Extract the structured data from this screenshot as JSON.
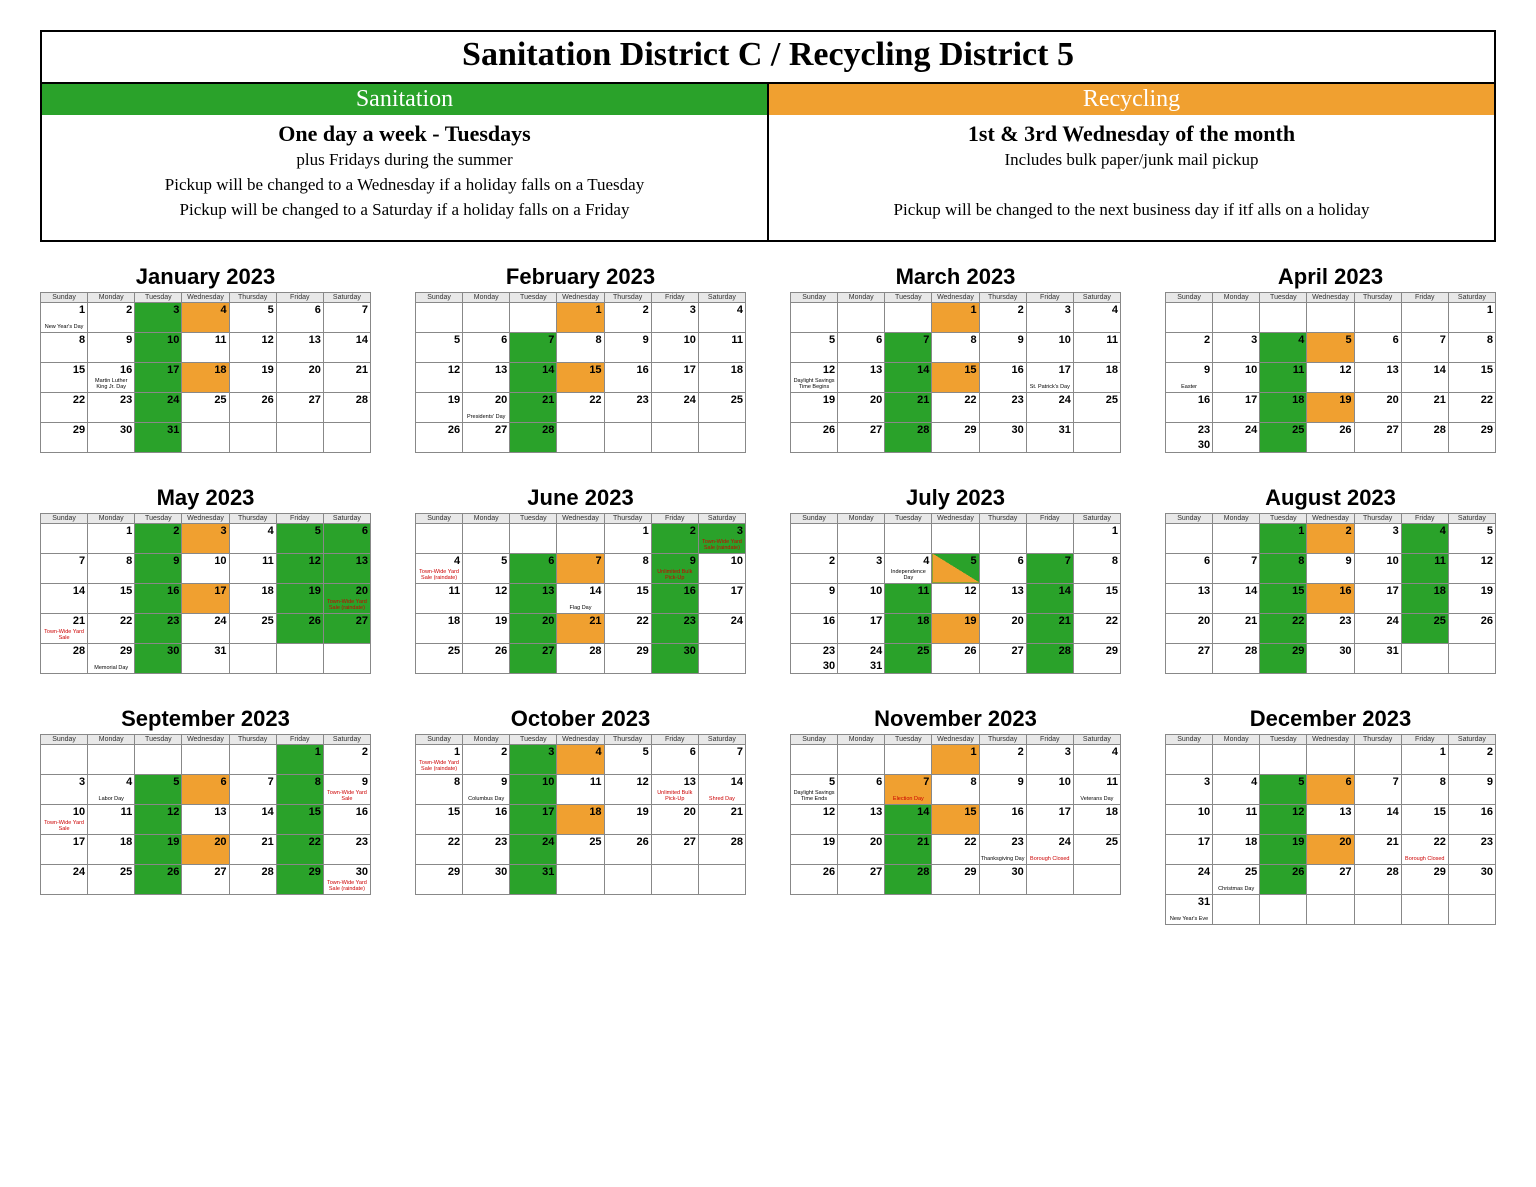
{
  "colors": {
    "sanitation": "#2aa22a",
    "recycling": "#f0a030",
    "border": "#000000",
    "header_bg": "#e8e8e8",
    "note_red": "#cc0000"
  },
  "header": {
    "main_title": "Sanitation District C / Recycling District 5",
    "sanitation": {
      "band": "Sanitation",
      "schedule": "One day a week - Tuesdays",
      "lines": [
        "plus Fridays during the summer",
        "Pickup will be changed to a Wednesday if a holiday falls on a Tuesday",
        "Pickup will be changed to a Saturday if a holiday falls on a Friday"
      ]
    },
    "recycling": {
      "band": "Recycling",
      "schedule": "1st & 3rd Wednesday of the month",
      "lines": [
        "Includes bulk paper/junk mail pickup",
        "",
        "Pickup will be changed to the next business day if itf alls on a holiday"
      ]
    }
  },
  "weekdays": [
    "Sunday",
    "Monday",
    "Tuesday",
    "Wednesday",
    "Thursday",
    "Friday",
    "Saturday"
  ],
  "months": [
    {
      "title": "January 2023",
      "start": 0,
      "days": 31,
      "colors": {
        "3": "g",
        "4": "o",
        "10": "g",
        "17": "g",
        "18": "o",
        "24": "g",
        "31": "g"
      },
      "notes": {
        "1": {
          "t": "New Year's Day"
        },
        "16": {
          "t": "Martin Luther King Jr. Day"
        }
      }
    },
    {
      "title": "February 2023",
      "start": 3,
      "days": 28,
      "colors": {
        "1": "o",
        "7": "g",
        "14": "g",
        "15": "o",
        "21": "g",
        "28": "g"
      },
      "notes": {
        "20": {
          "t": "Presidents' Day"
        }
      }
    },
    {
      "title": "March 2023",
      "start": 3,
      "days": 31,
      "colors": {
        "1": "o",
        "7": "g",
        "14": "g",
        "15": "o",
        "21": "g",
        "28": "g"
      },
      "notes": {
        "12": {
          "t": "Daylight Savings Time Begins"
        },
        "17": {
          "t": "St. Patrick's Day"
        }
      }
    },
    {
      "title": "April 2023",
      "start": 6,
      "days": 30,
      "double": {
        "23": "30"
      },
      "colors": {
        "4": "g",
        "5": "o",
        "11": "g",
        "18": "g",
        "19": "o",
        "25": "g"
      },
      "notes": {
        "9": {
          "t": "Easter"
        }
      }
    },
    {
      "title": "May 2023",
      "start": 1,
      "days": 31,
      "colors": {
        "2": "g",
        "3": "o",
        "5": "g",
        "6": "g",
        "9": "g",
        "12": "g",
        "13": "g",
        "16": "g",
        "17": "o",
        "19": "g",
        "20": "g",
        "23": "g",
        "26": "g",
        "27": "g",
        "30": "g"
      },
      "notes": {
        "20": {
          "t": "Town-Wide Yard Sale (raindate)",
          "red": true
        },
        "21": {
          "t": "Town-Wide Yard Sale",
          "red": true
        },
        "29": {
          "t": "Memorial Day"
        }
      }
    },
    {
      "title": "June 2023",
      "start": 4,
      "days": 30,
      "colors": {
        "2": "g",
        "3": "g",
        "6": "g",
        "7": "o",
        "9": "g",
        "13": "g",
        "16": "g",
        "20": "g",
        "21": "o",
        "23": "g",
        "27": "g",
        "30": "g"
      },
      "notes": {
        "3": {
          "t": "Town-Wide Yard Sale (raindate)",
          "red": true
        },
        "4": {
          "t": "Town-Wide Yard Sale (raindate)",
          "red": true
        },
        "9": {
          "t": "Unlimited Bulk Pick-Up",
          "red": true
        },
        "14": {
          "t": "Flag Day"
        }
      }
    },
    {
      "title": "July 2023",
      "start": 6,
      "days": 31,
      "double": {
        "23": "30",
        "24": "31"
      },
      "colors": {
        "5": "split",
        "7": "g",
        "11": "g",
        "14": "g",
        "18": "g",
        "19": "o",
        "21": "g",
        "25": "g",
        "28": "g"
      },
      "notes": {
        "4": {
          "t": "Independence Day"
        }
      }
    },
    {
      "title": "August 2023",
      "start": 2,
      "days": 31,
      "colors": {
        "1": "g",
        "2": "o",
        "4": "g",
        "8": "g",
        "11": "g",
        "15": "g",
        "16": "o",
        "18": "g",
        "22": "g",
        "25": "g",
        "29": "g"
      },
      "notes": {}
    },
    {
      "title": "September 2023",
      "start": 5,
      "days": 30,
      "colors": {
        "1": "g",
        "5": "g",
        "6": "o",
        "8": "g",
        "12": "g",
        "15": "g",
        "19": "g",
        "20": "o",
        "22": "g",
        "26": "g",
        "29": "g"
      },
      "notes": {
        "4": {
          "t": "Labor Day"
        },
        "9": {
          "t": "Town-Wide Yard Sale",
          "red": true
        },
        "10": {
          "t": "Town-Wide Yard Sale",
          "red": true
        },
        "30": {
          "t": "Town-Wide Yard Sale (raindate)",
          "red": true
        }
      }
    },
    {
      "title": "October 2023",
      "start": 0,
      "days": 31,
      "colors": {
        "3": "g",
        "4": "o",
        "10": "g",
        "17": "g",
        "18": "o",
        "24": "g",
        "31": "g"
      },
      "notes": {
        "1": {
          "t": "Town-Wide Yard Sale (raindate)",
          "red": true
        },
        "9": {
          "t": "Columbus Day"
        },
        "13": {
          "t": "Unlimited Bulk Pick-Up",
          "red": true
        },
        "14": {
          "t": "Shred Day",
          "red": true
        }
      }
    },
    {
      "title": "November 2023",
      "start": 3,
      "days": 30,
      "colors": {
        "1": "o",
        "7": "o",
        "14": "g",
        "15": "o",
        "21": "g",
        "28": "g"
      },
      "notes": {
        "5": {
          "t": "Daylight Savings Time Ends"
        },
        "7": {
          "t": "Election Day",
          "red": true
        },
        "11": {
          "t": "Veterans Day"
        },
        "23": {
          "t": "Thanksgiving Day"
        },
        "24": {
          "t": "Borough Closed",
          "red": true
        }
      }
    },
    {
      "title": "December 2023",
      "start": 5,
      "days": 31,
      "colors": {
        "5": "g",
        "6": "o",
        "12": "g",
        "19": "g",
        "20": "o",
        "26": "g"
      },
      "notes": {
        "22": {
          "t": "Borough Closed",
          "red": true
        },
        "25": {
          "t": "Christmas Day"
        },
        "31": {
          "t": "New Year's Eve"
        }
      }
    }
  ]
}
